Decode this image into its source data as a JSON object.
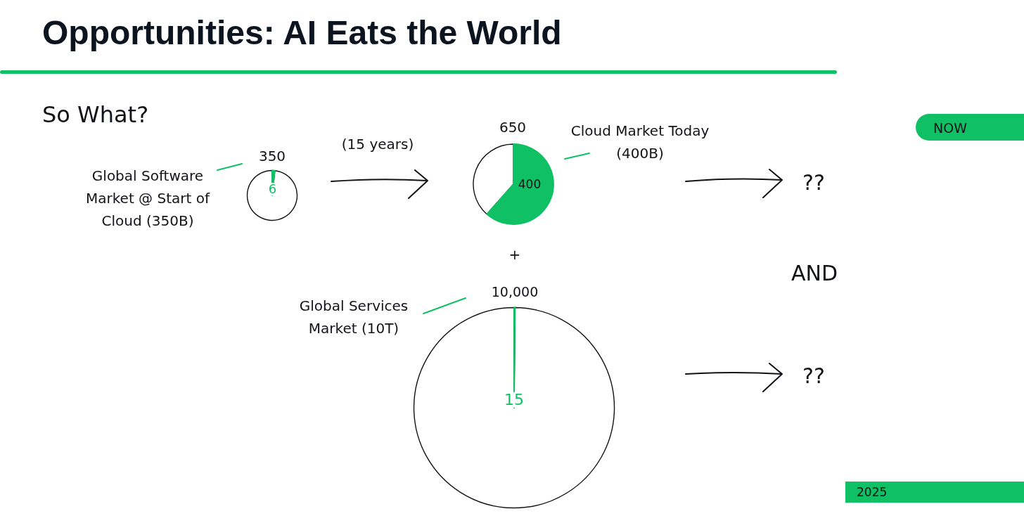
{
  "chart_data": [
    {
      "type": "pie",
      "title": "Opportunities: AI Eats the World",
      "subtitle": "So What?",
      "categories": [
        null,
        null
      ],
      "values": [
        6,
        344
      ],
      "colors": [
        "#10c064",
        "#ffffff"
      ],
      "value_labels": [
        "6",
        null
      ],
      "annotations": [
        "Global Software Market @ Start of Cloud (350B)",
        "350",
        "(15 years)"
      ]
    },
    {
      "type": "pie",
      "categories": [
        null,
        null
      ],
      "values": [
        400,
        250
      ],
      "colors": [
        "#10c064",
        "#ffffff"
      ],
      "value_labels": [
        "400",
        null
      ],
      "annotations": [
        "650",
        "Cloud Market Today (400B)",
        "??",
        "NOW"
      ]
    },
    {
      "type": "pie",
      "categories": [
        null,
        null
      ],
      "values": [
        15,
        9985
      ],
      "colors": [
        "#10c064",
        "#ffffff"
      ],
      "value_labels": [
        "15",
        null
      ],
      "annotations": [
        "10,000",
        "Global Services Market (10T)",
        "+",
        "AND",
        "??",
        "2025"
      ]
    }
  ]
}
